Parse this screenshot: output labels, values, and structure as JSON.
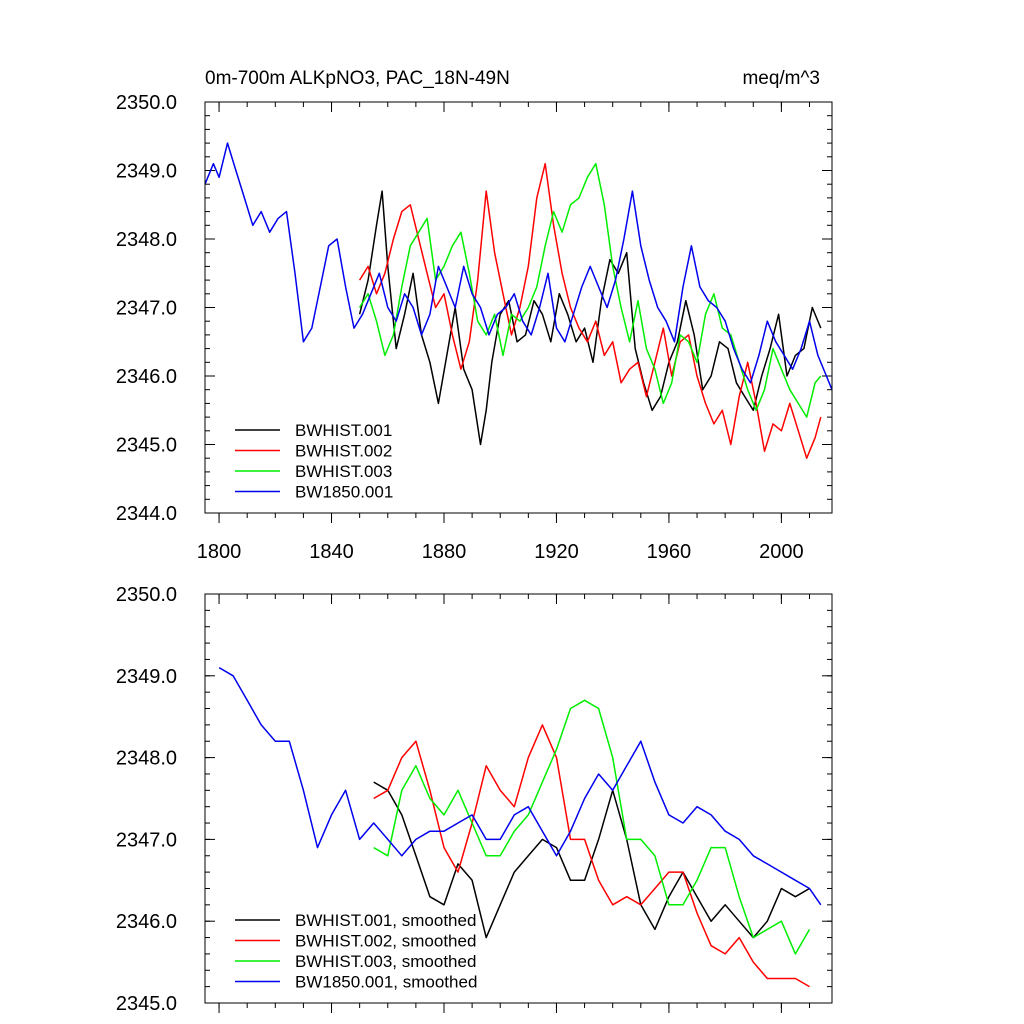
{
  "chart_data": [
    {
      "type": "line",
      "title_left": "0m-700m ALKpNO3, PAC_18N-49N",
      "title_right": "meq/m^3",
      "xlabel": "",
      "ylabel": "",
      "xlim": [
        1795,
        2018
      ],
      "ylim": [
        2344.0,
        2350.0
      ],
      "xticks": [
        1800,
        1840,
        1880,
        1920,
        1960,
        2000
      ],
      "yticks": [
        2344.0,
        2345.0,
        2346.0,
        2347.0,
        2348.0,
        2349.0,
        2350.0
      ],
      "ytick_labels": [
        "2344.0",
        "2345.0",
        "2346.0",
        "2347.0",
        "2348.0",
        "2349.0",
        "2350.0"
      ],
      "legend_position": "bottom-left",
      "series": [
        {
          "name": "BWHIST.001",
          "color": "#000000",
          "x": [
            1850,
            1853,
            1856,
            1858,
            1860,
            1863,
            1866,
            1869,
            1872,
            1875,
            1878,
            1881,
            1884,
            1887,
            1890,
            1893,
            1895,
            1897,
            1900,
            1903,
            1906,
            1909,
            1912,
            1915,
            1918,
            1921,
            1924,
            1927,
            1930,
            1933,
            1936,
            1939,
            1942,
            1945,
            1948,
            1951,
            1954,
            1957,
            1960,
            1963,
            1966,
            1969,
            1972,
            1975,
            1978,
            1981,
            1984,
            1987,
            1990,
            1993,
            1996,
            1999,
            2002,
            2005,
            2008,
            2011,
            2014
          ],
          "values": [
            2346.9,
            2347.4,
            2348.2,
            2348.7,
            2347.6,
            2346.4,
            2346.9,
            2347.5,
            2346.6,
            2346.2,
            2345.6,
            2346.3,
            2347.0,
            2346.1,
            2345.8,
            2345.0,
            2345.5,
            2346.2,
            2346.9,
            2347.1,
            2346.5,
            2346.6,
            2347.1,
            2346.9,
            2346.5,
            2347.2,
            2346.9,
            2346.5,
            2346.7,
            2346.2,
            2347.1,
            2347.7,
            2347.5,
            2347.8,
            2346.4,
            2345.9,
            2345.5,
            2345.7,
            2346.2,
            2346.5,
            2347.1,
            2346.6,
            2345.8,
            2346.0,
            2346.5,
            2346.4,
            2345.9,
            2345.7,
            2345.5,
            2346.0,
            2346.4,
            2346.9,
            2346.0,
            2346.3,
            2346.4,
            2347.0,
            2346.7
          ]
        },
        {
          "name": "BWHIST.002",
          "color": "#ff0000",
          "x": [
            1850,
            1853,
            1856,
            1859,
            1862,
            1865,
            1868,
            1871,
            1874,
            1877,
            1880,
            1883,
            1886,
            1889,
            1892,
            1895,
            1898,
            1901,
            1904,
            1907,
            1910,
            1913,
            1916,
            1919,
            1922,
            1925,
            1928,
            1931,
            1934,
            1937,
            1940,
            1943,
            1946,
            1949,
            1952,
            1955,
            1958,
            1961,
            1964,
            1967,
            1970,
            1973,
            1976,
            1979,
            1982,
            1985,
            1988,
            1991,
            1994,
            1997,
            2000,
            2003,
            2006,
            2009,
            2012,
            2014
          ],
          "values": [
            2347.4,
            2347.6,
            2347.2,
            2347.5,
            2348.0,
            2348.4,
            2348.5,
            2348.0,
            2347.5,
            2347.0,
            2347.2,
            2346.6,
            2346.1,
            2346.5,
            2347.4,
            2348.7,
            2347.8,
            2347.2,
            2346.6,
            2347.0,
            2347.6,
            2348.6,
            2349.1,
            2348.2,
            2347.5,
            2347.0,
            2346.7,
            2346.5,
            2346.8,
            2346.3,
            2346.5,
            2345.9,
            2346.1,
            2346.2,
            2345.7,
            2346.2,
            2346.7,
            2346.0,
            2346.5,
            2346.6,
            2346.0,
            2345.6,
            2345.3,
            2345.5,
            2345.0,
            2345.7,
            2346.2,
            2345.6,
            2344.9,
            2345.3,
            2345.2,
            2345.6,
            2345.2,
            2344.8,
            2345.1,
            2345.4
          ]
        },
        {
          "name": "BWHIST.003",
          "color": "#00ee00",
          "x": [
            1850,
            1853,
            1856,
            1859,
            1862,
            1865,
            1868,
            1871,
            1874,
            1877,
            1880,
            1883,
            1886,
            1889,
            1892,
            1895,
            1898,
            1901,
            1904,
            1907,
            1910,
            1913,
            1916,
            1919,
            1922,
            1925,
            1928,
            1931,
            1934,
            1937,
            1940,
            1943,
            1946,
            1949,
            1952,
            1955,
            1958,
            1961,
            1964,
            1967,
            1970,
            1973,
            1976,
            1979,
            1982,
            1985,
            1988,
            1991,
            1994,
            1997,
            2000,
            2003,
            2006,
            2009,
            2012,
            2014
          ],
          "values": [
            2347.0,
            2347.2,
            2346.8,
            2346.3,
            2346.6,
            2347.3,
            2347.9,
            2348.1,
            2348.3,
            2347.4,
            2347.6,
            2347.9,
            2348.1,
            2347.5,
            2346.8,
            2346.6,
            2346.9,
            2346.3,
            2346.9,
            2346.8,
            2347.0,
            2347.3,
            2347.9,
            2348.4,
            2348.1,
            2348.5,
            2348.6,
            2348.9,
            2349.1,
            2348.5,
            2347.6,
            2347.0,
            2346.5,
            2347.1,
            2346.4,
            2346.1,
            2345.6,
            2345.9,
            2346.6,
            2346.5,
            2346.2,
            2346.9,
            2347.2,
            2346.7,
            2346.6,
            2346.2,
            2345.8,
            2345.5,
            2345.8,
            2346.4,
            2346.1,
            2345.8,
            2345.6,
            2345.4,
            2345.9,
            2346.0
          ]
        },
        {
          "name": "BW1850.001",
          "color": "#0000ee",
          "x": [
            1795,
            1798,
            1800,
            1803,
            1806,
            1809,
            1812,
            1815,
            1818,
            1821,
            1824,
            1827,
            1830,
            1833,
            1836,
            1839,
            1842,
            1845,
            1848,
            1851,
            1854,
            1857,
            1860,
            1863,
            1866,
            1869,
            1872,
            1875,
            1878,
            1881,
            1884,
            1887,
            1890,
            1893,
            1896,
            1899,
            1902,
            1905,
            1908,
            1911,
            1914,
            1917,
            1920,
            1923,
            1926,
            1929,
            1932,
            1935,
            1938,
            1941,
            1944,
            1947,
            1950,
            1953,
            1956,
            1959,
            1962,
            1965,
            1968,
            1971,
            1974,
            1977,
            1980,
            1983,
            1986,
            1989,
            1992,
            1995,
            1998,
            2001,
            2004,
            2007,
            2010,
            2013,
            2016,
            2018
          ],
          "values": [
            2348.8,
            2349.1,
            2348.9,
            2349.4,
            2349.0,
            2348.6,
            2348.2,
            2348.4,
            2348.1,
            2348.3,
            2348.4,
            2347.5,
            2346.5,
            2346.7,
            2347.3,
            2347.9,
            2348.0,
            2347.3,
            2346.7,
            2346.9,
            2347.2,
            2347.5,
            2347.0,
            2346.8,
            2347.2,
            2347.0,
            2346.6,
            2346.9,
            2347.6,
            2347.3,
            2347.0,
            2347.6,
            2347.2,
            2347.0,
            2346.6,
            2346.9,
            2347.0,
            2347.2,
            2346.8,
            2346.6,
            2347.0,
            2347.5,
            2346.7,
            2346.5,
            2346.9,
            2347.3,
            2347.6,
            2347.3,
            2347.0,
            2347.4,
            2348.0,
            2348.7,
            2347.9,
            2347.4,
            2347.0,
            2346.8,
            2346.5,
            2347.3,
            2347.9,
            2347.3,
            2347.1,
            2347.0,
            2346.8,
            2346.4,
            2346.1,
            2345.9,
            2346.3,
            2346.8,
            2346.5,
            2346.3,
            2346.1,
            2346.4,
            2346.8,
            2346.3,
            2346.0,
            2345.8
          ]
        }
      ]
    },
    {
      "type": "line",
      "xlabel": "",
      "ylabel": "",
      "xlim": [
        1795,
        2018
      ],
      "ylim": [
        2345.0,
        2350.0
      ],
      "xticks": [
        1800,
        1840,
        1880,
        1920,
        1960,
        2000
      ],
      "yticks": [
        2345.0,
        2346.0,
        2347.0,
        2348.0,
        2349.0,
        2350.0
      ],
      "ytick_labels": [
        "2345.0",
        "2346.0",
        "2347.0",
        "2348.0",
        "2349.0",
        "2350.0"
      ],
      "legend_position": "bottom-left",
      "series": [
        {
          "name": "BWHIST.001, smoothed",
          "color": "#000000",
          "x": [
            1855,
            1860,
            1865,
            1870,
            1875,
            1880,
            1885,
            1890,
            1895,
            1900,
            1905,
            1910,
            1915,
            1920,
            1925,
            1930,
            1935,
            1940,
            1945,
            1950,
            1955,
            1960,
            1965,
            1970,
            1975,
            1980,
            1985,
            1990,
            1995,
            2000,
            2005,
            2010
          ],
          "values": [
            2347.7,
            2347.6,
            2347.3,
            2346.8,
            2346.3,
            2346.2,
            2346.7,
            2346.5,
            2345.8,
            2346.2,
            2346.6,
            2346.8,
            2347.0,
            2346.9,
            2346.5,
            2346.5,
            2347.0,
            2347.6,
            2347.0,
            2346.2,
            2345.9,
            2346.3,
            2346.6,
            2346.3,
            2346.0,
            2346.2,
            2346.0,
            2345.8,
            2346.0,
            2346.4,
            2346.3,
            2346.4
          ]
        },
        {
          "name": "BWHIST.002, smoothed",
          "color": "#ff0000",
          "x": [
            1855,
            1860,
            1865,
            1870,
            1875,
            1880,
            1885,
            1890,
            1895,
            1900,
            1905,
            1910,
            1915,
            1920,
            1925,
            1930,
            1935,
            1940,
            1945,
            1950,
            1955,
            1960,
            1965,
            1970,
            1975,
            1980,
            1985,
            1990,
            1995,
            2000,
            2005,
            2010
          ],
          "values": [
            2347.5,
            2347.6,
            2348.0,
            2348.2,
            2347.6,
            2346.9,
            2346.6,
            2347.2,
            2347.9,
            2347.6,
            2347.4,
            2348.0,
            2348.4,
            2348.0,
            2347.0,
            2347.0,
            2346.5,
            2346.2,
            2346.3,
            2346.2,
            2346.4,
            2346.6,
            2346.6,
            2346.1,
            2345.7,
            2345.6,
            2345.8,
            2345.5,
            2345.3,
            2345.3,
            2345.3,
            2345.2
          ]
        },
        {
          "name": "BWHIST.003, smoothed",
          "color": "#00ee00",
          "x": [
            1855,
            1860,
            1865,
            1870,
            1875,
            1880,
            1885,
            1890,
            1895,
            1900,
            1905,
            1910,
            1915,
            1920,
            1925,
            1930,
            1935,
            1940,
            1945,
            1950,
            1955,
            1960,
            1965,
            1970,
            1975,
            1980,
            1985,
            1990,
            1995,
            2000,
            2005,
            2010
          ],
          "values": [
            2346.9,
            2346.8,
            2347.6,
            2347.9,
            2347.5,
            2347.3,
            2347.6,
            2347.2,
            2346.8,
            2346.8,
            2347.1,
            2347.3,
            2347.7,
            2348.1,
            2348.6,
            2348.7,
            2348.6,
            2348.0,
            2347.0,
            2347.0,
            2346.8,
            2346.2,
            2346.2,
            2346.5,
            2346.9,
            2346.9,
            2346.3,
            2345.8,
            2345.9,
            2346.0,
            2345.6,
            2345.9
          ]
        },
        {
          "name": "BW1850.001, smoothed",
          "color": "#0000ee",
          "x": [
            1800,
            1805,
            1810,
            1815,
            1820,
            1825,
            1830,
            1835,
            1840,
            1845,
            1850,
            1855,
            1860,
            1865,
            1870,
            1875,
            1880,
            1885,
            1890,
            1895,
            1900,
            1905,
            1910,
            1915,
            1920,
            1925,
            1930,
            1935,
            1940,
            1945,
            1950,
            1955,
            1960,
            1965,
            1970,
            1975,
            1980,
            1985,
            1990,
            1995,
            2000,
            2005,
            2010,
            2014
          ],
          "values": [
            2349.1,
            2349.0,
            2348.7,
            2348.4,
            2348.2,
            2348.2,
            2347.6,
            2346.9,
            2347.3,
            2347.6,
            2347.0,
            2347.2,
            2347.0,
            2346.8,
            2347.0,
            2347.1,
            2347.1,
            2347.2,
            2347.3,
            2347.0,
            2347.0,
            2347.3,
            2347.4,
            2347.1,
            2346.8,
            2347.1,
            2347.5,
            2347.8,
            2347.6,
            2347.9,
            2348.2,
            2347.7,
            2347.3,
            2347.2,
            2347.4,
            2347.3,
            2347.1,
            2347.0,
            2346.8,
            2346.7,
            2346.6,
            2346.5,
            2346.4,
            2346.2
          ]
        }
      ]
    }
  ]
}
